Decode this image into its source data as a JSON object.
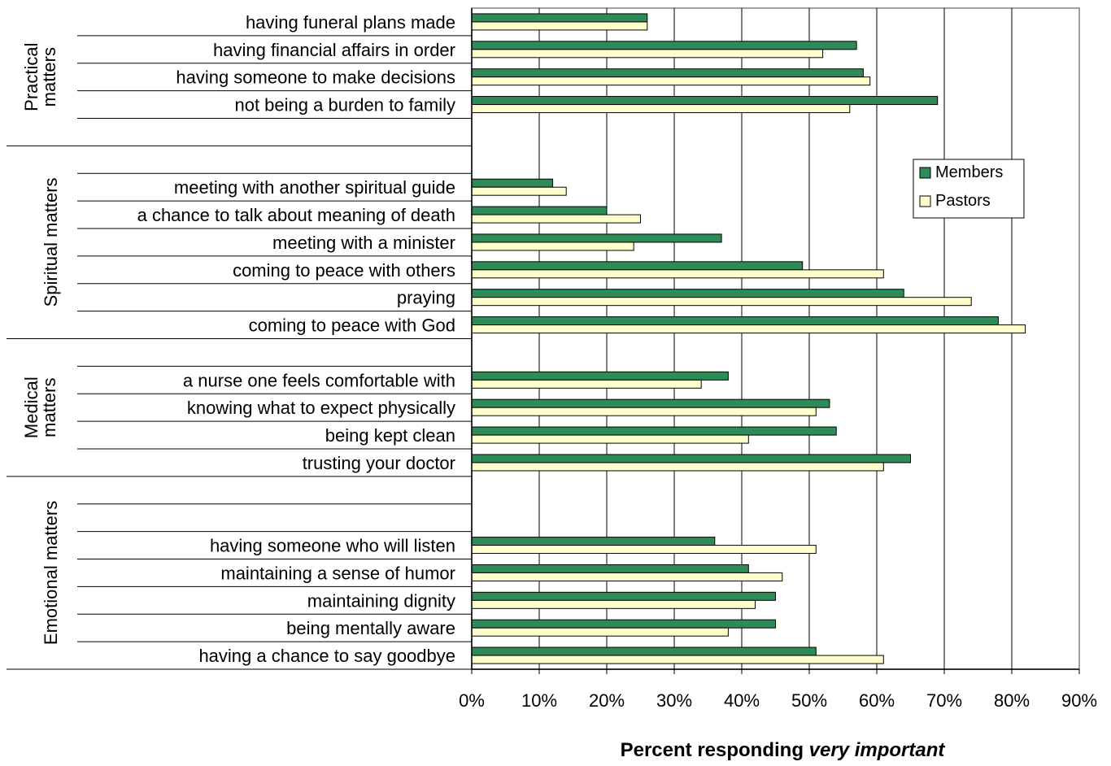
{
  "chart_data": {
    "type": "bar",
    "orientation": "horizontal",
    "xlabel": {
      "prefix": "Percent responding ",
      "emphasis": "very important"
    },
    "xlim": [
      0,
      90
    ],
    "xticks": [
      "0%",
      "10%",
      "20%",
      "30%",
      "40%",
      "50%",
      "60%",
      "70%",
      "80%",
      "90%"
    ],
    "grid": true,
    "legend_position": "right",
    "colors": {
      "Members": "#2e8b57",
      "Pastors": "#ffffcc"
    },
    "groups": [
      {
        "label_lines": [
          "Practical",
          "matters"
        ],
        "items": [
          {
            "label": "having funeral plans made",
            "Members": 26,
            "Pastors": 26
          },
          {
            "label": "having financial affairs in order",
            "Members": 57,
            "Pastors": 52
          },
          {
            "label": "having someone to make decisions",
            "Members": 58,
            "Pastors": 59
          },
          {
            "label": "not being a burden to family",
            "Members": 69,
            "Pastors": 56
          },
          {
            "label": "",
            "Members": null,
            "Pastors": null
          }
        ]
      },
      {
        "label_lines": [
          "Spiritual matters"
        ],
        "items": [
          {
            "label": "",
            "Members": null,
            "Pastors": null
          },
          {
            "label": "meeting with another spiritual guide",
            "Members": 12,
            "Pastors": 14
          },
          {
            "label": "a chance to talk about meaning of death",
            "Members": 20,
            "Pastors": 25
          },
          {
            "label": "meeting with a minister",
            "Members": 37,
            "Pastors": 24
          },
          {
            "label": "coming to peace with others",
            "Members": 49,
            "Pastors": 61
          },
          {
            "label": "praying",
            "Members": 64,
            "Pastors": 74
          },
          {
            "label": "coming to peace with God",
            "Members": 78,
            "Pastors": 82
          }
        ]
      },
      {
        "label_lines": [
          "Medical",
          "matters"
        ],
        "items": [
          {
            "label": "",
            "Members": null,
            "Pastors": null
          },
          {
            "label": "a nurse one feels comfortable with",
            "Members": 38,
            "Pastors": 34
          },
          {
            "label": "knowing what to expect physically",
            "Members": 53,
            "Pastors": 51
          },
          {
            "label": "being kept clean",
            "Members": 54,
            "Pastors": 41
          },
          {
            "label": "trusting your doctor",
            "Members": 65,
            "Pastors": 61
          }
        ]
      },
      {
        "label_lines": [
          "Emotional matters"
        ],
        "items": [
          {
            "label": "",
            "Members": null,
            "Pastors": null
          },
          {
            "label": "",
            "Members": null,
            "Pastors": null
          },
          {
            "label": "having someone who will listen",
            "Members": 36,
            "Pastors": 51
          },
          {
            "label": "maintaining a sense of humor",
            "Members": 41,
            "Pastors": 46
          },
          {
            "label": "maintaining dignity",
            "Members": 45,
            "Pastors": 42
          },
          {
            "label": "being mentally aware",
            "Members": 45,
            "Pastors": 38
          },
          {
            "label": "having a chance to say goodbye",
            "Members": 51,
            "Pastors": 61
          }
        ]
      }
    ],
    "legend": [
      "Members",
      "Pastors"
    ]
  }
}
